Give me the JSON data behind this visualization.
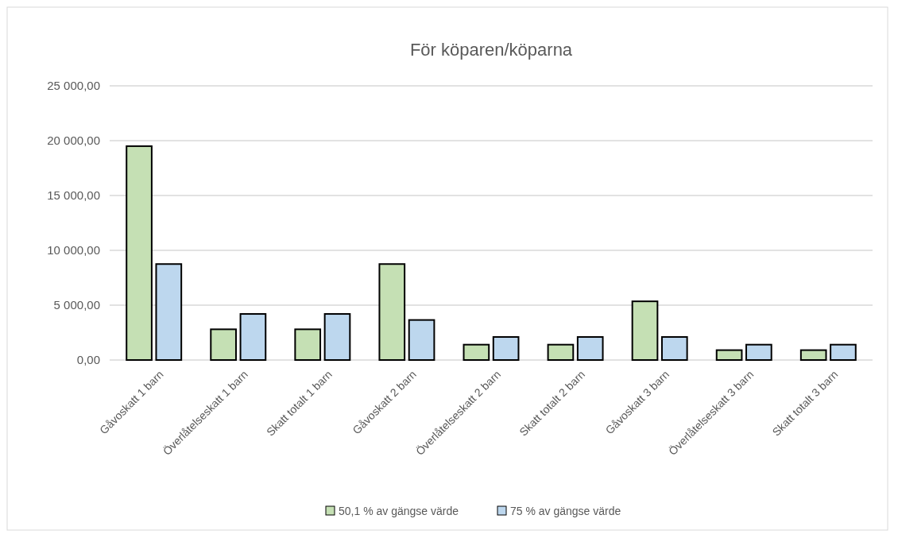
{
  "chart_data": {
    "type": "bar",
    "title": "För köparen/köparna",
    "categories": [
      "Gåvoskatt 1 barn",
      "Överlåtelseskatt 1 barn",
      "Skatt totalt 1 barn",
      "Gåvoskatt 2 barn",
      "Överlåtelseskatt 2 barn",
      "Skatt totalt 2 barn",
      "Gåvoskatt 3 barn",
      "Överlåtelseskatt 3 barn",
      "Skatt totalt 3 barn"
    ],
    "series": [
      {
        "name": "50,1 % av gängse värde",
        "color": "#c5e0b4",
        "values": [
          19500,
          2800,
          2800,
          8750,
          1400,
          1400,
          5350,
          900,
          900
        ]
      },
      {
        "name": "75 % av gängse värde",
        "color": "#bdd7ee",
        "values": [
          8750,
          4200,
          4200,
          3650,
          2100,
          2100,
          2100,
          1400,
          1400
        ]
      }
    ],
    "ylim": [
      0,
      25000
    ],
    "yticks": [
      {
        "value": 0,
        "label": "0,00"
      },
      {
        "value": 5000,
        "label": "5 000,00"
      },
      {
        "value": 10000,
        "label": "10 000,00"
      },
      {
        "value": 15000,
        "label": "15 000,00"
      },
      {
        "value": 20000,
        "label": "20 000,00"
      },
      {
        "value": 25000,
        "label": "25 000,00"
      }
    ],
    "grid": "y",
    "legend": "bottom"
  }
}
